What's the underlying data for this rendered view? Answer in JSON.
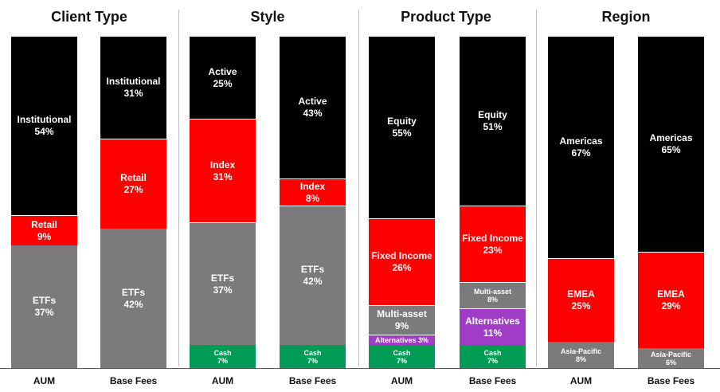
{
  "colors": {
    "black": "#000000",
    "red": "#ff0000",
    "grey": "#7d7a7e",
    "green": "#009b55",
    "purple": "#a13cc6"
  },
  "chart_data": [
    {
      "type": "bar",
      "stacked": true,
      "title": "Client Type",
      "categories": [
        "AUM",
        "Base Fees"
      ],
      "series": [
        {
          "name": "ETFs",
          "color_key": "grey",
          "values": [
            37,
            42
          ]
        },
        {
          "name": "Retail",
          "color_key": "red",
          "values": [
            9,
            27
          ]
        },
        {
          "name": "Institutional",
          "color_key": "black",
          "values": [
            54,
            31
          ]
        }
      ]
    },
    {
      "type": "bar",
      "stacked": true,
      "title": "Style",
      "categories": [
        "AUM",
        "Base Fees"
      ],
      "series": [
        {
          "name": "Cash",
          "color_key": "green",
          "values": [
            7,
            7
          ]
        },
        {
          "name": "ETFs",
          "color_key": "grey",
          "values": [
            37,
            42
          ]
        },
        {
          "name": "Index",
          "color_key": "red",
          "values": [
            31,
            8
          ]
        },
        {
          "name": "Active",
          "color_key": "black",
          "values": [
            25,
            43
          ]
        }
      ]
    },
    {
      "type": "bar",
      "stacked": true,
      "title": "Product Type",
      "categories": [
        "AUM",
        "Base Fees"
      ],
      "series": [
        {
          "name": "Cash",
          "color_key": "green",
          "values": [
            7,
            7
          ]
        },
        {
          "name": "Alternatives",
          "color_key": "purple",
          "values": [
            3,
            11
          ]
        },
        {
          "name": "Multi-asset",
          "color_key": "grey",
          "values": [
            9,
            8
          ]
        },
        {
          "name": "Fixed Income",
          "color_key": "red",
          "values": [
            26,
            23
          ]
        },
        {
          "name": "Equity",
          "color_key": "black",
          "values": [
            55,
            51
          ]
        }
      ]
    },
    {
      "type": "bar",
      "stacked": true,
      "title": "Region",
      "categories": [
        "AUM",
        "Base Fees"
      ],
      "series": [
        {
          "name": "Asia-Pacific",
          "color_key": "grey",
          "values": [
            8,
            6
          ]
        },
        {
          "name": "EMEA",
          "color_key": "red",
          "values": [
            25,
            29
          ]
        },
        {
          "name": "Americas",
          "color_key": "black",
          "values": [
            67,
            65
          ]
        }
      ]
    }
  ]
}
